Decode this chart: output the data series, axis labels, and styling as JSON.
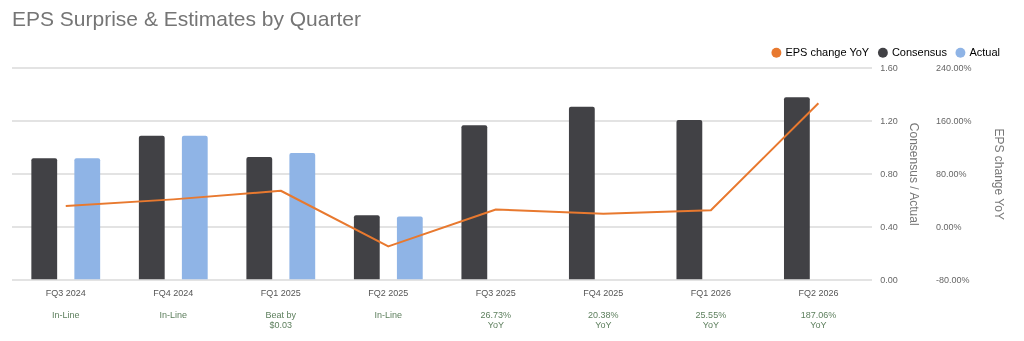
{
  "chart_data": {
    "type": "bar",
    "title": "EPS Surprise & Estimates by Quarter",
    "ylabel": "Consensus / Actual",
    "y2label": "EPS change YoY",
    "categories": [
      "FQ3 2024",
      "FQ4 2024",
      "FQ1 2025",
      "FQ2 2025",
      "FQ3 2025",
      "FQ4 2025",
      "FQ1 2026",
      "FQ2 2026"
    ],
    "series": [
      {
        "name": "EPS change YoY",
        "type": "line",
        "axis": "y2",
        "color": "#e8792f",
        "values": [
          32,
          42,
          55,
          -29,
          26.73,
          20.38,
          25.55,
          187.06
        ]
      },
      {
        "name": "Consensus",
        "color": "#414145",
        "values": [
          0.92,
          1.09,
          0.93,
          0.49,
          1.17,
          1.31,
          1.21,
          1.38
        ]
      },
      {
        "name": "Actual",
        "color": "#8fb4e6",
        "values": [
          0.92,
          1.09,
          0.96,
          0.48,
          null,
          null,
          null,
          null
        ]
      }
    ],
    "ylim": [
      0,
      1.6
    ],
    "yticks": [
      {
        "value": 0,
        "label": "0.00"
      },
      {
        "value": 0.4,
        "label": "0.40"
      },
      {
        "value": 0.8,
        "label": "0.80"
      },
      {
        "value": 1.2,
        "label": "1.20"
      },
      {
        "value": 1.6,
        "label": "1.60"
      }
    ],
    "y2lim": [
      -80,
      240
    ],
    "y2ticks": [
      {
        "value": -80,
        "label": "-80.00%"
      },
      {
        "value": 0,
        "label": "0.00%"
      },
      {
        "value": 80,
        "label": "80.00%"
      },
      {
        "value": 160,
        "label": "160.00%"
      },
      {
        "value": 240,
        "label": "240.00%"
      }
    ],
    "annotations": [
      "In-Line",
      "In-Line",
      "Beat by\n$0.03",
      "In-Line",
      "26.73%\nYoY",
      "20.38%\nYoY",
      "25.55%\nYoY",
      "187.06%\nYoY"
    ],
    "grid": "y",
    "legend": "top right",
    "marker": "none",
    "line_style": "solid"
  }
}
